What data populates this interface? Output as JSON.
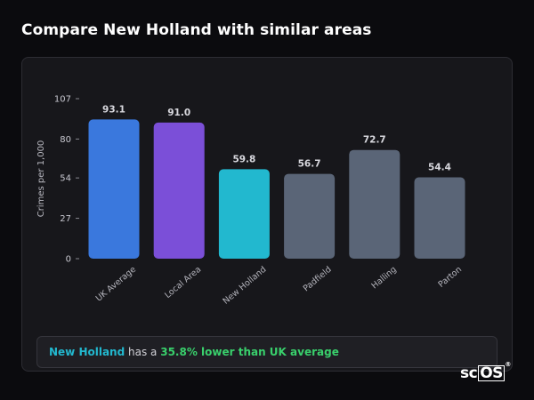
{
  "title": "Compare New Holland with similar areas",
  "summary": {
    "area": "New Holland",
    "middle": " has a ",
    "difference": "35.8% lower than UK average"
  },
  "logo": {
    "text_a": "sc",
    "text_b": "OS",
    "reg": "®"
  },
  "chart_data": {
    "type": "bar",
    "ylabel": "Crimes per 1,000",
    "xlabel": "",
    "ylim": [
      0,
      107
    ],
    "yticks": [
      0,
      27,
      54,
      80,
      107
    ],
    "grid": false,
    "legend": "none",
    "categories": [
      "UK Average",
      "Local Area",
      "New Holland",
      "Padfield",
      "Halling",
      "Parton"
    ],
    "values": [
      93.1,
      91.0,
      59.8,
      56.7,
      72.7,
      54.4
    ],
    "value_labels": [
      "93.1",
      "91.0",
      "59.8",
      "56.7",
      "72.7",
      "54.4"
    ],
    "colors": [
      "#3a78dd",
      "#7b4fd8",
      "#22b8cf",
      "#5a6577",
      "#5a6577",
      "#5a6577"
    ]
  }
}
